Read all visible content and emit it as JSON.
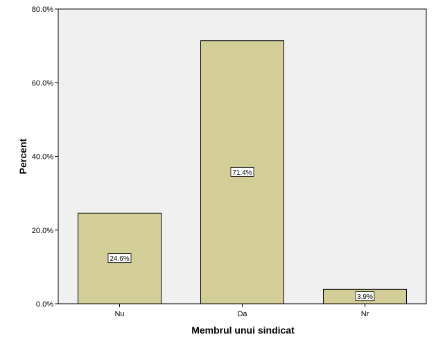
{
  "chart_data": {
    "type": "bar",
    "categories": [
      "Nu",
      "Da",
      "Nr"
    ],
    "values": [
      24.6,
      71.4,
      3.9
    ],
    "data_labels": [
      "24.6%",
      "71.4%",
      "3.9%"
    ],
    "xlabel": "Membrul unui sindicat",
    "ylabel": "Percent",
    "ylim": [
      0,
      80
    ],
    "yticks": [
      0,
      20,
      40,
      60,
      80
    ],
    "ytick_labels": [
      "0.0%",
      "20.0%",
      "40.0%",
      "60.0%",
      "80.0%"
    ],
    "grid": false,
    "legend": "none",
    "colors": {
      "bar_fill": "#d3ce97",
      "bar_stroke": "#000000",
      "plot_background": "#f0f0f0",
      "label_background": "#ffffff"
    }
  }
}
